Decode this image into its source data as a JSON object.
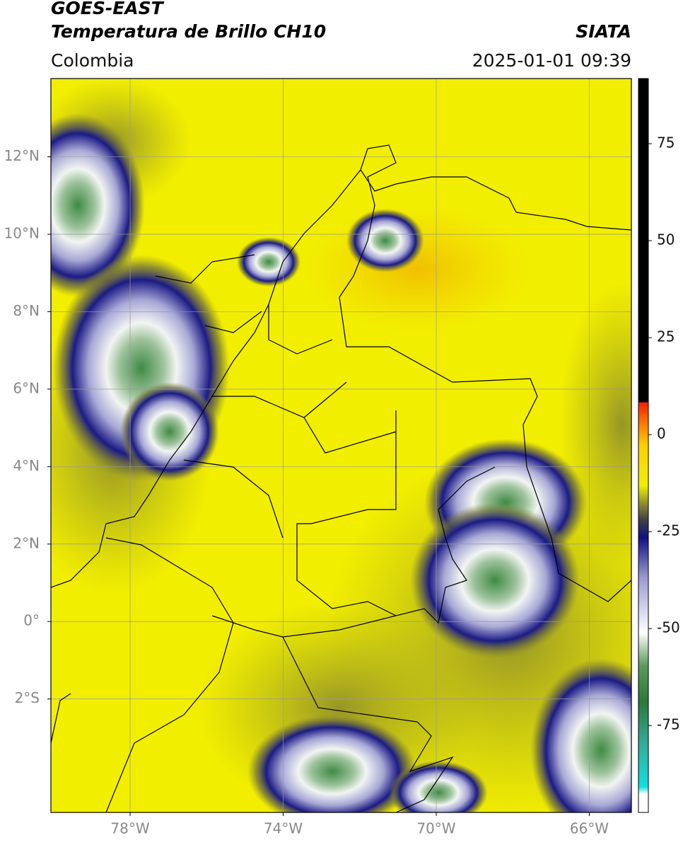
{
  "header": {
    "title": "GOES-EAST",
    "subtitle": "Temperatura de Brillo CH10",
    "source": "SIATA",
    "region": "Colombia",
    "datetime": "2025-01-01 09:39"
  },
  "map": {
    "xlim": [
      -80.07,
      -64.9
    ],
    "ylim": [
      -4.93,
      14.02
    ],
    "xticks": [
      {
        "value": -78,
        "label": "78°W"
      },
      {
        "value": -74,
        "label": "74°W"
      },
      {
        "value": -70,
        "label": "70°W"
      },
      {
        "value": -66,
        "label": "66°W"
      }
    ],
    "yticks": [
      {
        "value": 12,
        "label": "12°N"
      },
      {
        "value": 10,
        "label": "10°N"
      },
      {
        "value": 8,
        "label": "8°N"
      },
      {
        "value": 6,
        "label": "6°N"
      },
      {
        "value": 4,
        "label": "4°N"
      },
      {
        "value": 2,
        "label": "2°N"
      },
      {
        "value": 0,
        "label": "0°"
      },
      {
        "value": -2,
        "label": "2°S"
      }
    ]
  },
  "colorbar": {
    "ylim": [
      -97.4,
      91.8
    ],
    "yticks": [
      75,
      50,
      25,
      0,
      -25,
      -50,
      -75
    ]
  }
}
